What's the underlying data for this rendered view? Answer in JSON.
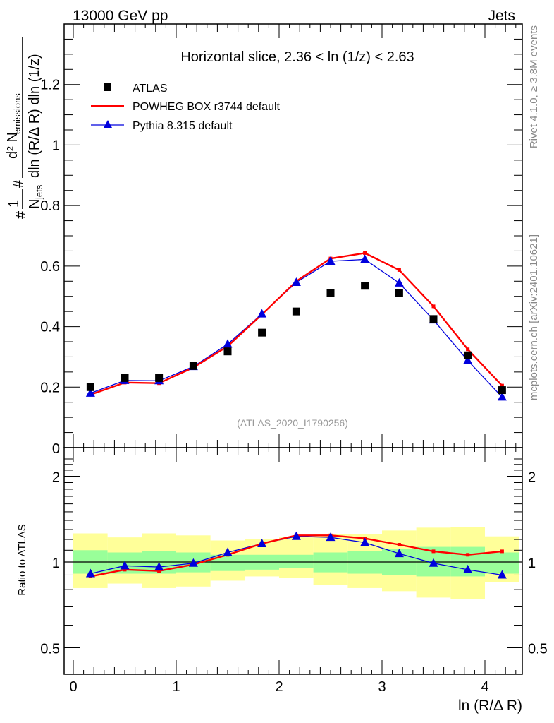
{
  "header": {
    "left": "13000 GeV pp",
    "right": "Jets"
  },
  "side_labels": {
    "rivet": "Rivet 4.1.0, ≥ 3.8M events",
    "mcplots": "mcplots.cern.ch [arXiv:2401.10621]"
  },
  "chart_data": [
    {
      "type": "scatter",
      "panel": "main",
      "title": "Horizontal slice, 2.36 < ln (1/z) < 2.63",
      "watermark": "(ATLAS_2020_I1790256)",
      "xlabel": "ln (R/Δ R)",
      "ylabel_parts": {
        "prefix": "#",
        "frac1_num": "1",
        "frac1_den": "N",
        "frac1_den_sub": "jets",
        "frac2_num": "d² N",
        "frac2_num_sub": "emissions",
        "frac2_den": "dln (R/Δ R) dln (1/z)",
        "hash": "#"
      },
      "xlim": [
        0,
        4.36
      ],
      "ylim": [
        0,
        1.4
      ],
      "x_ticks": [
        "0",
        "1",
        "2",
        "3",
        "4"
      ],
      "y_ticks": [
        {
          "v": 0.2,
          "label": "0.2"
        },
        {
          "v": 0.4,
          "label": "0.4"
        },
        {
          "v": 0.6,
          "label": "0.6"
        },
        {
          "v": 0.8,
          "label": "0.8"
        },
        {
          "v": 1.0,
          "label": "1"
        },
        {
          "v": 1.2,
          "label": "1.2"
        }
      ],
      "y_zero_label": "0",
      "legend_position": "top-left",
      "x": [
        0.167,
        0.5,
        0.833,
        1.167,
        1.5,
        1.833,
        2.167,
        2.5,
        2.833,
        3.167,
        3.5,
        3.833,
        4.167
      ],
      "series": [
        {
          "name": "ATLAS",
          "marker": "square",
          "color": "#000000",
          "values": [
            0.2,
            0.23,
            0.23,
            0.27,
            0.318,
            0.38,
            0.45,
            0.51,
            0.535,
            0.51,
            0.425,
            0.305,
            0.19
          ]
        },
        {
          "name": "POWHEG BOX r3744 default",
          "marker": "line",
          "color": "#ff0000",
          "values": [
            0.175,
            0.215,
            0.213,
            0.265,
            0.335,
            0.44,
            0.55,
            0.625,
            0.643,
            0.587,
            0.467,
            0.325,
            0.205
          ]
        },
        {
          "name": "Pythia 8.315 default",
          "marker": "triangle",
          "color": "#0000dd",
          "values": [
            0.18,
            0.222,
            0.221,
            0.268,
            0.342,
            0.442,
            0.546,
            0.616,
            0.622,
            0.544,
            0.422,
            0.288,
            0.167
          ]
        }
      ]
    },
    {
      "type": "line",
      "panel": "ratio",
      "ylabel": "Ratio to ATLAS",
      "xlabel": "ln (R/Δ R)",
      "yscale": "log",
      "xlim": [
        0,
        4.36
      ],
      "ylim": [
        0.4,
        2.3
      ],
      "y_ticks": [
        {
          "v": 0.5,
          "label": "0.5"
        },
        {
          "v": 1,
          "label": "1"
        },
        {
          "v": 2,
          "label": "2"
        }
      ],
      "x_ticks": [
        "0",
        "1",
        "2",
        "3",
        "4"
      ],
      "bin_edges": [
        0,
        0.333,
        0.667,
        1.0,
        1.333,
        1.667,
        2.0,
        2.333,
        2.667,
        3.0,
        3.333,
        3.667,
        4.0,
        4.333
      ],
      "band_inner": {
        "color": "#99ff99",
        "lo": [
          0.91,
          0.91,
          0.91,
          0.92,
          0.93,
          0.94,
          0.95,
          0.92,
          0.91,
          0.9,
          0.89,
          0.89,
          0.91
        ],
        "hi": [
          1.1,
          1.08,
          1.09,
          1.08,
          1.06,
          1.06,
          1.06,
          1.08,
          1.09,
          1.11,
          1.13,
          1.13,
          1.08
        ]
      },
      "band_outer": {
        "color": "#ffff99",
        "lo": [
          0.81,
          0.84,
          0.81,
          0.82,
          0.86,
          0.89,
          0.88,
          0.83,
          0.81,
          0.79,
          0.75,
          0.74,
          0.85
        ],
        "hi": [
          1.26,
          1.22,
          1.26,
          1.24,
          1.19,
          1.2,
          1.22,
          1.25,
          1.25,
          1.29,
          1.32,
          1.33,
          1.23
        ]
      },
      "x": [
        0.167,
        0.5,
        0.833,
        1.167,
        1.5,
        1.833,
        2.167,
        2.5,
        2.833,
        3.167,
        3.5,
        3.833,
        4.167
      ],
      "series": [
        {
          "name": "POWHEG BOX r3744 default",
          "color": "#ff0000",
          "values": [
            0.89,
            0.94,
            0.93,
            0.98,
            1.06,
            1.16,
            1.24,
            1.24,
            1.21,
            1.15,
            1.09,
            1.06,
            1.09
          ]
        },
        {
          "name": "Pythia 8.315 default",
          "color": "#0000dd",
          "values": [
            0.91,
            0.97,
            0.96,
            0.99,
            1.08,
            1.16,
            1.23,
            1.22,
            1.17,
            1.07,
            0.99,
            0.94,
            0.9
          ]
        }
      ]
    }
  ]
}
